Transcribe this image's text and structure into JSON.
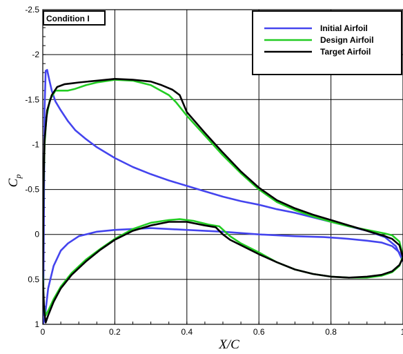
{
  "chart_data": {
    "type": "line",
    "title": "",
    "annotation": "Condition I",
    "xlabel": "X/C",
    "ylabel_main": "C",
    "ylabel_sub": "p",
    "xlim": [
      0,
      1
    ],
    "ylim": [
      -2.5,
      1
    ],
    "y_inverted": true,
    "grid": true,
    "legend_position": "top-right",
    "x_ticks": [
      {
        "value": 0,
        "label": "0"
      },
      {
        "value": 0.2,
        "label": "0.2"
      },
      {
        "value": 0.4,
        "label": "0.4"
      },
      {
        "value": 0.6,
        "label": "0.6"
      },
      {
        "value": 0.8,
        "label": "0.8"
      },
      {
        "value": 1,
        "label": "1"
      }
    ],
    "y_ticks": [
      {
        "value": -2.5,
        "label": "-2.5"
      },
      {
        "value": -2,
        "label": "-2"
      },
      {
        "value": -1.5,
        "label": "-1.5"
      },
      {
        "value": -1,
        "label": "-1"
      },
      {
        "value": -0.5,
        "label": "-0.5"
      },
      {
        "value": 0,
        "label": "0"
      },
      {
        "value": 0.5,
        "label": "0.5"
      },
      {
        "value": 1,
        "label": "1"
      }
    ],
    "series": [
      {
        "name": "Initial Airfoil",
        "color": "#4444ee",
        "points": [
          [
            1.0,
            0.3
          ],
          [
            0.99,
            0.2
          ],
          [
            0.97,
            0.13
          ],
          [
            0.94,
            0.09
          ],
          [
            0.9,
            0.07
          ],
          [
            0.85,
            0.05
          ],
          [
            0.82,
            0.04
          ],
          [
            0.78,
            0.03
          ],
          [
            0.7,
            0.02
          ],
          [
            0.6,
            0.0
          ],
          [
            0.5,
            -0.03
          ],
          [
            0.4,
            -0.05
          ],
          [
            0.3,
            -0.07
          ],
          [
            0.2,
            -0.05
          ],
          [
            0.15,
            -0.03
          ],
          [
            0.1,
            0.02
          ],
          [
            0.07,
            0.1
          ],
          [
            0.05,
            0.18
          ],
          [
            0.03,
            0.35
          ],
          [
            0.015,
            0.6
          ],
          [
            0.005,
            0.95
          ],
          [
            0.0,
            1.0
          ],
          [
            0.002,
            0.5
          ],
          [
            0.003,
            -0.2
          ],
          [
            0.005,
            -1.4
          ],
          [
            0.008,
            -1.82
          ],
          [
            0.012,
            -1.83
          ],
          [
            0.018,
            -1.72
          ],
          [
            0.025,
            -1.6
          ],
          [
            0.035,
            -1.48
          ],
          [
            0.05,
            -1.38
          ],
          [
            0.07,
            -1.26
          ],
          [
            0.09,
            -1.16
          ],
          [
            0.12,
            -1.06
          ],
          [
            0.15,
            -0.97
          ],
          [
            0.2,
            -0.85
          ],
          [
            0.25,
            -0.75
          ],
          [
            0.3,
            -0.67
          ],
          [
            0.35,
            -0.6
          ],
          [
            0.4,
            -0.54
          ],
          [
            0.45,
            -0.48
          ],
          [
            0.5,
            -0.42
          ],
          [
            0.55,
            -0.37
          ],
          [
            0.6,
            -0.33
          ],
          [
            0.65,
            -0.28
          ],
          [
            0.7,
            -0.24
          ],
          [
            0.75,
            -0.19
          ],
          [
            0.8,
            -0.14
          ],
          [
            0.85,
            -0.09
          ],
          [
            0.9,
            -0.04
          ],
          [
            0.95,
            0.03
          ],
          [
            0.98,
            0.13
          ],
          [
            1.0,
            0.3
          ]
        ]
      },
      {
        "name": "Design Airfoil",
        "color": "#22cc22",
        "points": [
          [
            1.0,
            0.24
          ],
          [
            0.99,
            0.08
          ],
          [
            0.97,
            0.01
          ],
          [
            0.95,
            -0.01
          ],
          [
            0.9,
            -0.05
          ],
          [
            0.85,
            -0.09
          ],
          [
            0.8,
            -0.14
          ],
          [
            0.75,
            -0.2
          ],
          [
            0.7,
            -0.27
          ],
          [
            0.65,
            -0.36
          ],
          [
            0.6,
            -0.5
          ],
          [
            0.55,
            -0.68
          ],
          [
            0.5,
            -0.88
          ],
          [
            0.45,
            -1.1
          ],
          [
            0.4,
            -1.32
          ],
          [
            0.37,
            -1.47
          ],
          [
            0.35,
            -1.55
          ],
          [
            0.3,
            -1.66
          ],
          [
            0.25,
            -1.71
          ],
          [
            0.2,
            -1.72
          ],
          [
            0.15,
            -1.69
          ],
          [
            0.12,
            -1.66
          ],
          [
            0.09,
            -1.62
          ],
          [
            0.07,
            -1.6
          ],
          [
            0.05,
            -1.6
          ],
          [
            0.035,
            -1.6
          ],
          [
            0.02,
            -1.5
          ],
          [
            0.01,
            -1.3
          ],
          [
            0.005,
            -1.0
          ],
          [
            0.002,
            -0.5
          ],
          [
            0.0,
            0.4
          ],
          [
            0.003,
            0.8
          ],
          [
            0.008,
            0.9
          ],
          [
            0.015,
            0.85
          ],
          [
            0.03,
            0.72
          ],
          [
            0.05,
            0.58
          ],
          [
            0.08,
            0.43
          ],
          [
            0.12,
            0.28
          ],
          [
            0.16,
            0.16
          ],
          [
            0.2,
            0.05
          ],
          [
            0.25,
            -0.06
          ],
          [
            0.3,
            -0.13
          ],
          [
            0.35,
            -0.16
          ],
          [
            0.38,
            -0.17
          ],
          [
            0.42,
            -0.15
          ],
          [
            0.46,
            -0.11
          ],
          [
            0.49,
            -0.09
          ],
          [
            0.52,
            0.02
          ],
          [
            0.55,
            0.1
          ],
          [
            0.6,
            0.2
          ],
          [
            0.65,
            0.31
          ],
          [
            0.7,
            0.39
          ],
          [
            0.75,
            0.44
          ],
          [
            0.8,
            0.47
          ],
          [
            0.85,
            0.48
          ],
          [
            0.9,
            0.48
          ],
          [
            0.94,
            0.46
          ],
          [
            0.97,
            0.42
          ],
          [
            0.99,
            0.35
          ],
          [
            1.0,
            0.24
          ]
        ]
      },
      {
        "name": "Target Airfoil",
        "color": "#000000",
        "points": [
          [
            1.0,
            0.26
          ],
          [
            0.99,
            0.12
          ],
          [
            0.97,
            0.05
          ],
          [
            0.95,
            0.02
          ],
          [
            0.9,
            -0.04
          ],
          [
            0.85,
            -0.1
          ],
          [
            0.8,
            -0.16
          ],
          [
            0.75,
            -0.22
          ],
          [
            0.7,
            -0.29
          ],
          [
            0.65,
            -0.38
          ],
          [
            0.6,
            -0.52
          ],
          [
            0.55,
            -0.7
          ],
          [
            0.5,
            -0.91
          ],
          [
            0.45,
            -1.13
          ],
          [
            0.4,
            -1.36
          ],
          [
            0.38,
            -1.55
          ],
          [
            0.36,
            -1.61
          ],
          [
            0.33,
            -1.66
          ],
          [
            0.3,
            -1.7
          ],
          [
            0.25,
            -1.72
          ],
          [
            0.2,
            -1.73
          ],
          [
            0.15,
            -1.71
          ],
          [
            0.1,
            -1.69
          ],
          [
            0.08,
            -1.68
          ],
          [
            0.06,
            -1.67
          ],
          [
            0.04,
            -1.64
          ],
          [
            0.025,
            -1.55
          ],
          [
            0.012,
            -1.38
          ],
          [
            0.005,
            -1.05
          ],
          [
            0.002,
            -0.5
          ],
          [
            0.0,
            0.5
          ],
          [
            0.004,
            0.85
          ],
          [
            0.008,
            0.98
          ],
          [
            0.015,
            0.9
          ],
          [
            0.03,
            0.75
          ],
          [
            0.05,
            0.6
          ],
          [
            0.08,
            0.45
          ],
          [
            0.12,
            0.3
          ],
          [
            0.16,
            0.17
          ],
          [
            0.2,
            0.06
          ],
          [
            0.25,
            -0.04
          ],
          [
            0.3,
            -0.1
          ],
          [
            0.35,
            -0.14
          ],
          [
            0.4,
            -0.14
          ],
          [
            0.45,
            -0.1
          ],
          [
            0.48,
            -0.08
          ],
          [
            0.5,
            0.0
          ],
          [
            0.52,
            0.06
          ],
          [
            0.55,
            0.12
          ],
          [
            0.6,
            0.22
          ],
          [
            0.65,
            0.31
          ],
          [
            0.7,
            0.39
          ],
          [
            0.75,
            0.44
          ],
          [
            0.8,
            0.47
          ],
          [
            0.85,
            0.48
          ],
          [
            0.9,
            0.47
          ],
          [
            0.94,
            0.45
          ],
          [
            0.97,
            0.41
          ],
          [
            0.99,
            0.34
          ],
          [
            1.0,
            0.26
          ]
        ]
      }
    ]
  }
}
